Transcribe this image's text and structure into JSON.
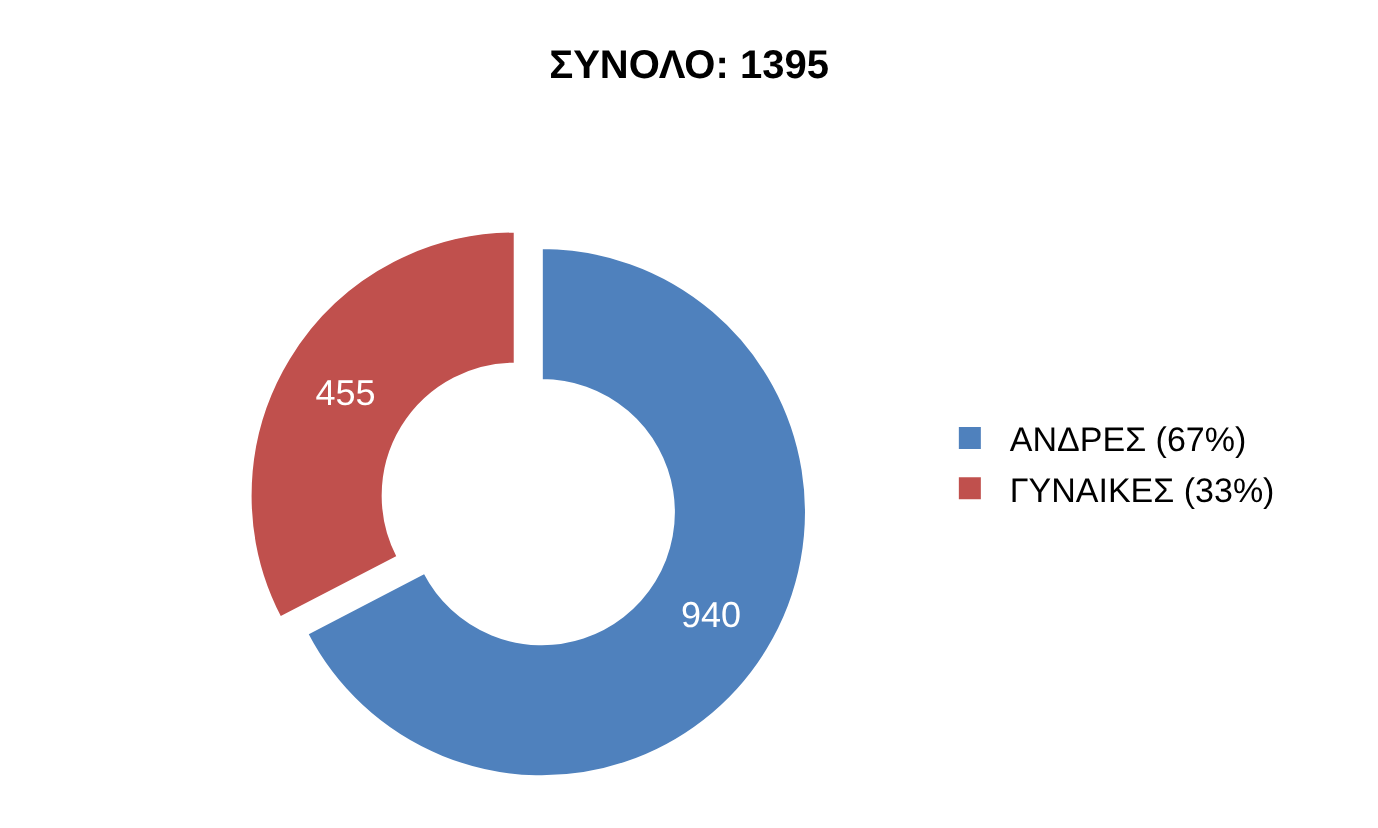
{
  "chart_data": {
    "type": "donut",
    "title": "ΣΥΝΟΛΟ: 1395",
    "categories": [
      "ΑΝΔΡΕΣ (67%)",
      "ΓΥΝΑΙΚΕΣ (33%)"
    ],
    "values": [
      940,
      455
    ],
    "colors": [
      "#4f81bd",
      "#c0504d"
    ],
    "data_labels": true,
    "legend": "right"
  }
}
